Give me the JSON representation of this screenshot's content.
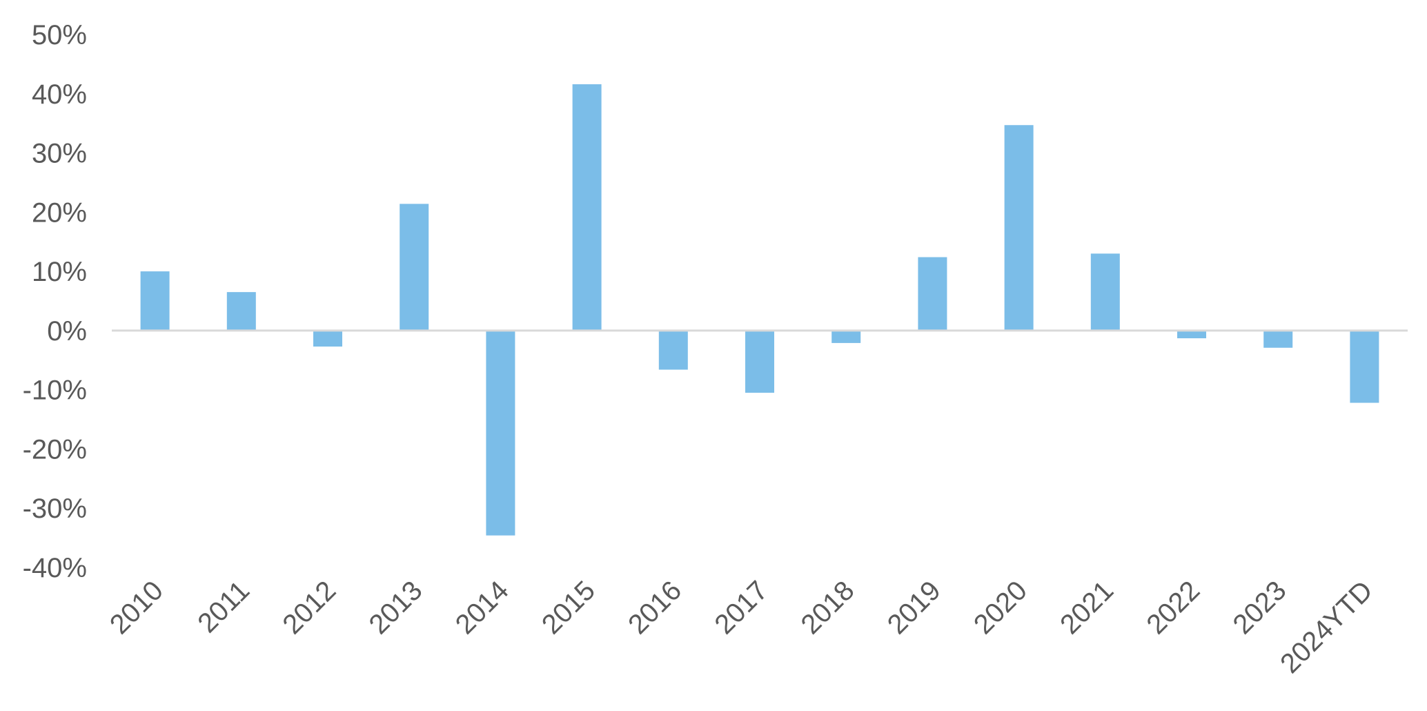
{
  "chart_data": {
    "type": "bar",
    "categories": [
      "2010",
      "2011",
      "2012",
      "2013",
      "2014",
      "2015",
      "2016",
      "2017",
      "2018",
      "2019",
      "2020",
      "2021",
      "2022",
      "2023",
      "2024YTD"
    ],
    "values": [
      10.0,
      6.5,
      -2.7,
      21.4,
      -34.6,
      41.6,
      -6.6,
      -10.5,
      -2.1,
      12.4,
      34.7,
      13.0,
      -1.3,
      -2.9,
      -12.2
    ],
    "yticks": [
      "50%",
      "40%",
      "30%",
      "20%",
      "10%",
      "0%",
      "-10%",
      "-20%",
      "-30%",
      "-40%"
    ],
    "ylim": [
      -40,
      50
    ],
    "grid": false,
    "legend": "none",
    "colors": {
      "bar": "#7bbde8",
      "axis": "#d9d9d9",
      "text": "#595959"
    }
  }
}
